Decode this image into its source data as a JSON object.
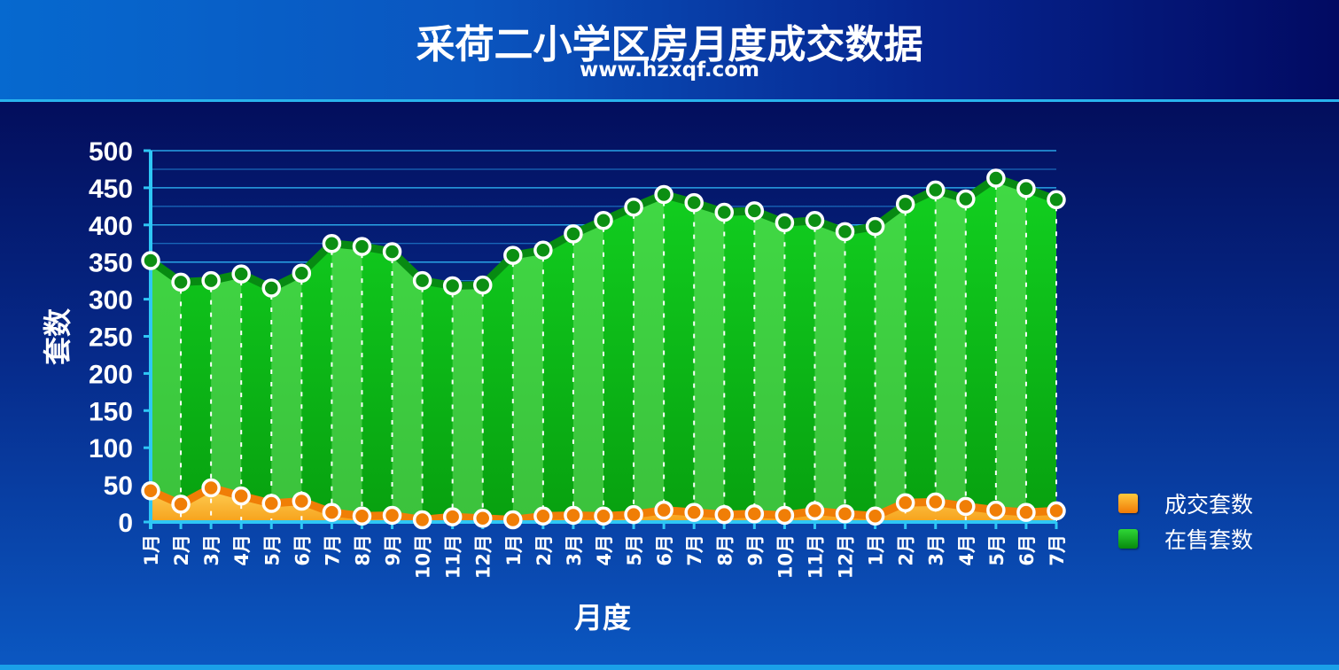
{
  "header": {
    "title": "采荷二小学区房月度成交数据",
    "subtitle": "www.hzxqf.com"
  },
  "colors": {
    "sold": "#f58a0a",
    "for_sale": "#13b41a"
  },
  "chart_data": {
    "type": "area",
    "title": "采荷二小学区房月度成交数据",
    "xlabel": "月度",
    "ylabel": "套数",
    "ylim": [
      0,
      500
    ],
    "yticks": [
      0,
      50,
      100,
      150,
      200,
      250,
      300,
      350,
      400,
      450,
      500
    ],
    "categories": [
      "1月",
      "2月",
      "3月",
      "4月",
      "5月",
      "6月",
      "7月",
      "8月",
      "9月",
      "10月",
      "11月",
      "12月",
      "1月",
      "2月",
      "3月",
      "4月",
      "5月",
      "6月",
      "7月",
      "8月",
      "9月",
      "10月",
      "11月",
      "12月",
      "1月",
      "2月",
      "3月",
      "4月",
      "5月",
      "6月",
      "7月"
    ],
    "series": [
      {
        "name": "成交套数",
        "values": [
          42,
          24,
          46,
          35,
          25,
          28,
          13,
          8,
          9,
          3,
          7,
          5,
          3,
          8,
          9,
          8,
          10,
          16,
          13,
          10,
          11,
          9,
          15,
          11,
          8,
          26,
          27,
          21,
          16,
          13,
          15
        ]
      },
      {
        "name": "在售套数",
        "values": [
          352,
          323,
          325,
          334,
          315,
          335,
          375,
          371,
          364,
          325,
          318,
          319,
          359,
          366,
          388,
          406,
          424,
          441,
          430,
          417,
          419,
          403,
          406,
          391,
          398,
          428,
          447,
          435,
          463,
          449,
          434
        ]
      }
    ],
    "legend": "right",
    "grid": true
  }
}
